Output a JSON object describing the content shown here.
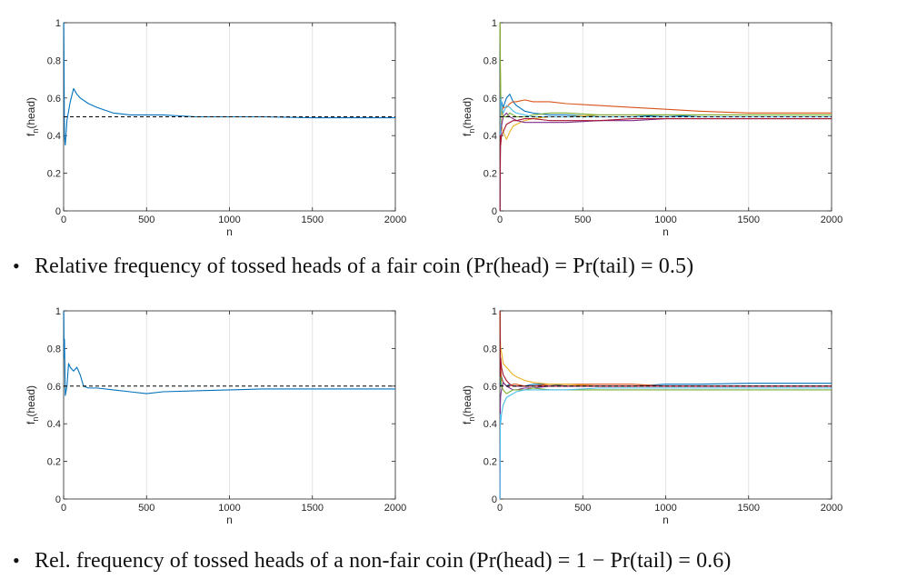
{
  "chart_data": [
    {
      "type": "line",
      "xlabel": "n",
      "ylabel": "f_n(head)",
      "xlim": [
        0,
        2000
      ],
      "ylim": [
        0,
        1
      ],
      "xticks": [
        0,
        500,
        1000,
        1500,
        2000
      ],
      "yticks": [
        0,
        0.2,
        0.4,
        0.6,
        0.8,
        1
      ],
      "ytick_labels": [
        "0",
        "0.2",
        "0.4",
        "0.6",
        "0.8",
        "1"
      ],
      "grid": "vertical",
      "reference": 0.5,
      "series": [
        {
          "color": "#0072bd",
          "x": [
            1,
            3,
            5,
            10,
            20,
            40,
            60,
            80,
            100,
            150,
            200,
            300,
            400,
            600,
            800,
            1000,
            1200,
            1500,
            2000
          ],
          "y": [
            1,
            0.7,
            0.4,
            0.35,
            0.48,
            0.58,
            0.65,
            0.62,
            0.6,
            0.57,
            0.55,
            0.52,
            0.51,
            0.51,
            0.5,
            0.5,
            0.5,
            0.495,
            0.495
          ]
        }
      ]
    },
    {
      "type": "line",
      "xlabel": "n",
      "ylabel": "f_n(head)",
      "xlim": [
        0,
        2000
      ],
      "ylim": [
        0,
        1
      ],
      "xticks": [
        0,
        500,
        1000,
        1500,
        2000
      ],
      "yticks": [
        0,
        0.2,
        0.4,
        0.6,
        0.8,
        1
      ],
      "ytick_labels": [
        "0",
        "0.2",
        "0.4",
        "0.6",
        "0.8",
        "1"
      ],
      "grid": "vertical",
      "reference": 0.5,
      "series": [
        {
          "color": "#0072bd",
          "x": [
            1,
            3,
            5,
            10,
            20,
            40,
            60,
            80,
            100,
            150,
            200,
            300,
            400,
            600,
            800,
            1000,
            1200,
            1500,
            2000
          ],
          "y": [
            1,
            0.7,
            0.55,
            0.58,
            0.55,
            0.6,
            0.62,
            0.58,
            0.56,
            0.53,
            0.52,
            0.51,
            0.51,
            0.5,
            0.5,
            0.51,
            0.5,
            0.5,
            0.5
          ]
        },
        {
          "color": "#d95319",
          "x": [
            1,
            3,
            5,
            10,
            20,
            40,
            60,
            80,
            100,
            150,
            200,
            300,
            400,
            600,
            800,
            1000,
            1200,
            1500,
            2000
          ],
          "y": [
            0,
            0.3,
            0.45,
            0.52,
            0.55,
            0.55,
            0.57,
            0.58,
            0.58,
            0.59,
            0.58,
            0.58,
            0.57,
            0.56,
            0.55,
            0.54,
            0.53,
            0.52,
            0.52
          ]
        },
        {
          "color": "#edb120",
          "x": [
            1,
            3,
            5,
            10,
            20,
            40,
            60,
            80,
            100,
            150,
            200,
            300,
            400,
            600,
            800,
            1000,
            1200,
            1500,
            2000
          ],
          "y": [
            1,
            0.8,
            0.6,
            0.45,
            0.42,
            0.38,
            0.42,
            0.45,
            0.46,
            0.48,
            0.49,
            0.5,
            0.5,
            0.51,
            0.51,
            0.51,
            0.51,
            0.51,
            0.51
          ]
        },
        {
          "color": "#7e2f8e",
          "x": [
            1,
            3,
            5,
            10,
            20,
            40,
            60,
            80,
            100,
            150,
            200,
            300,
            400,
            600,
            800,
            1000,
            1200,
            1500,
            2000
          ],
          "y": [
            0,
            0.3,
            0.4,
            0.45,
            0.5,
            0.52,
            0.5,
            0.49,
            0.48,
            0.47,
            0.47,
            0.47,
            0.47,
            0.48,
            0.48,
            0.49,
            0.49,
            0.49,
            0.49
          ]
        },
        {
          "color": "#77ac30",
          "x": [
            1,
            3,
            5,
            10,
            20,
            40,
            60,
            80,
            100,
            150,
            200,
            300,
            400,
            600,
            800,
            1000,
            1200,
            1500,
            2000
          ],
          "y": [
            1,
            0.75,
            0.62,
            0.55,
            0.5,
            0.5,
            0.52,
            0.51,
            0.5,
            0.5,
            0.51,
            0.52,
            0.52,
            0.51,
            0.51,
            0.51,
            0.51,
            0.51,
            0.51
          ]
        },
        {
          "color": "#4dbeee",
          "x": [
            1,
            3,
            5,
            10,
            20,
            40,
            60,
            80,
            100,
            150,
            200,
            300,
            400,
            600,
            800,
            1000,
            1200,
            1500,
            2000
          ],
          "y": [
            0,
            0.35,
            0.6,
            0.55,
            0.52,
            0.56,
            0.55,
            0.53,
            0.52,
            0.51,
            0.5,
            0.5,
            0.5,
            0.5,
            0.5,
            0.5,
            0.5,
            0.5,
            0.5
          ]
        },
        {
          "color": "#a2142f",
          "x": [
            1,
            3,
            5,
            10,
            20,
            40,
            60,
            80,
            100,
            150,
            200,
            300,
            400,
            600,
            800,
            1000,
            1200,
            1500,
            2000
          ],
          "y": [
            0,
            0.4,
            0.35,
            0.4,
            0.42,
            0.46,
            0.47,
            0.48,
            0.48,
            0.49,
            0.49,
            0.48,
            0.48,
            0.48,
            0.49,
            0.49,
            0.49,
            0.49,
            0.49
          ]
        }
      ]
    },
    {
      "type": "line",
      "xlabel": "n",
      "ylabel": "f_n(head)",
      "xlim": [
        0,
        2000
      ],
      "ylim": [
        0,
        1
      ],
      "xticks": [
        0,
        500,
        1000,
        1500,
        2000
      ],
      "yticks": [
        0,
        0.2,
        0.4,
        0.6,
        0.8,
        1
      ],
      "ytick_labels": [
        "0",
        "0.2",
        "0.4",
        "0.6",
        "0.8",
        "1"
      ],
      "grid": "vertical",
      "reference": 0.6,
      "series": [
        {
          "color": "#0072bd",
          "x": [
            1,
            3,
            5,
            10,
            20,
            30,
            40,
            60,
            80,
            100,
            120,
            150,
            200,
            300,
            400,
            500,
            600,
            800,
            1000,
            1200,
            1500,
            2000
          ],
          "y": [
            1,
            0.75,
            0.85,
            0.55,
            0.6,
            0.72,
            0.7,
            0.68,
            0.7,
            0.66,
            0.6,
            0.59,
            0.59,
            0.58,
            0.57,
            0.56,
            0.57,
            0.575,
            0.58,
            0.585,
            0.585,
            0.585
          ]
        }
      ]
    },
    {
      "type": "line",
      "xlabel": "n",
      "ylabel": "f_n(head)",
      "xlim": [
        0,
        2000
      ],
      "ylim": [
        0,
        1
      ],
      "xticks": [
        0,
        500,
        1000,
        1500,
        2000
      ],
      "yticks": [
        0,
        0.2,
        0.4,
        0.6,
        0.8,
        1
      ],
      "ytick_labels": [
        "0",
        "0.2",
        "0.4",
        "0.6",
        "0.8",
        "1"
      ],
      "grid": "vertical",
      "reference": 0.6,
      "series": [
        {
          "color": "#0072bd",
          "x": [
            1,
            3,
            5,
            10,
            20,
            40,
            60,
            80,
            100,
            150,
            200,
            300,
            400,
            600,
            800,
            1000,
            1200,
            1500,
            2000
          ],
          "y": [
            1,
            0.7,
            0.6,
            0.65,
            0.62,
            0.6,
            0.61,
            0.6,
            0.6,
            0.6,
            0.61,
            0.61,
            0.6,
            0.6,
            0.6,
            0.61,
            0.61,
            0.615,
            0.615
          ]
        },
        {
          "color": "#d95319",
          "x": [
            1,
            3,
            5,
            10,
            20,
            40,
            60,
            80,
            100,
            150,
            200,
            300,
            400,
            600,
            800,
            1000,
            1200,
            1500,
            2000
          ],
          "y": [
            1,
            0.75,
            0.7,
            0.64,
            0.62,
            0.6,
            0.6,
            0.61,
            0.61,
            0.6,
            0.6,
            0.61,
            0.61,
            0.61,
            0.61,
            0.6,
            0.6,
            0.6,
            0.6
          ]
        },
        {
          "color": "#edb120",
          "x": [
            1,
            3,
            5,
            10,
            20,
            40,
            60,
            80,
            100,
            150,
            200,
            300,
            400,
            600,
            800,
            1000,
            1200,
            1500,
            2000
          ],
          "y": [
            1,
            0.85,
            0.8,
            0.78,
            0.72,
            0.7,
            0.68,
            0.66,
            0.65,
            0.63,
            0.62,
            0.61,
            0.61,
            0.6,
            0.6,
            0.6,
            0.6,
            0.6,
            0.6
          ]
        },
        {
          "color": "#7e2f8e",
          "x": [
            1,
            3,
            5,
            10,
            20,
            40,
            60,
            80,
            100,
            150,
            200,
            300,
            400,
            600,
            800,
            1000,
            1200,
            1500,
            2000
          ],
          "y": [
            0,
            0.5,
            0.55,
            0.58,
            0.62,
            0.6,
            0.59,
            0.58,
            0.58,
            0.59,
            0.59,
            0.6,
            0.6,
            0.6,
            0.6,
            0.6,
            0.6,
            0.6,
            0.6
          ]
        },
        {
          "color": "#77ac30",
          "x": [
            1,
            3,
            5,
            10,
            20,
            40,
            60,
            80,
            100,
            150,
            200,
            300,
            400,
            600,
            800,
            1000,
            1200,
            1500,
            2000
          ],
          "y": [
            1,
            0.7,
            0.65,
            0.6,
            0.58,
            0.56,
            0.57,
            0.58,
            0.58,
            0.58,
            0.59,
            0.58,
            0.58,
            0.58,
            0.58,
            0.58,
            0.58,
            0.58,
            0.58
          ]
        },
        {
          "color": "#4dbeee",
          "x": [
            1,
            3,
            5,
            10,
            20,
            40,
            60,
            80,
            100,
            150,
            200,
            300,
            400,
            600,
            800,
            1000,
            1200,
            1500,
            2000
          ],
          "y": [
            0,
            0.45,
            0.4,
            0.45,
            0.5,
            0.54,
            0.55,
            0.56,
            0.57,
            0.58,
            0.58,
            0.58,
            0.58,
            0.59,
            0.59,
            0.59,
            0.59,
            0.59,
            0.59
          ]
        },
        {
          "color": "#a2142f",
          "x": [
            1,
            3,
            5,
            10,
            20,
            40,
            60,
            80,
            100,
            150,
            200,
            300,
            400,
            600,
            800,
            1000,
            1200,
            1500,
            2000
          ],
          "y": [
            1,
            0.65,
            0.75,
            0.7,
            0.66,
            0.63,
            0.61,
            0.6,
            0.6,
            0.6,
            0.6,
            0.6,
            0.6,
            0.6,
            0.6,
            0.6,
            0.6,
            0.6,
            0.6
          ]
        }
      ]
    }
  ],
  "captions": {
    "bullet": "•",
    "fair": "Relative frequency of tossed heads of a fair coin (Pr(head) = Pr(tail) = 0.5)",
    "nonfair": "Rel. frequency of tossed heads of a non-fair coin (Pr(head) = 1 − Pr(tail) = 0.6)"
  }
}
